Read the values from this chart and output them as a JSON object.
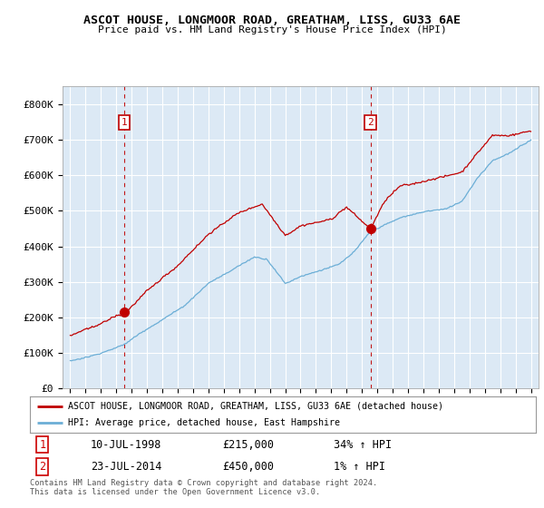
{
  "title": "ASCOT HOUSE, LONGMOOR ROAD, GREATHAM, LISS, GU33 6AE",
  "subtitle": "Price paid vs. HM Land Registry's House Price Index (HPI)",
  "legend_line1": "ASCOT HOUSE, LONGMOOR ROAD, GREATHAM, LISS, GU33 6AE (detached house)",
  "legend_line2": "HPI: Average price, detached house, East Hampshire",
  "table_row1": [
    "1",
    "10-JUL-1998",
    "£215,000",
    "34% ↑ HPI"
  ],
  "table_row2": [
    "2",
    "23-JUL-2014",
    "£450,000",
    "1% ↑ HPI"
  ],
  "footer": "Contains HM Land Registry data © Crown copyright and database right 2024.\nThis data is licensed under the Open Government Licence v3.0.",
  "hpi_color": "#6baed6",
  "price_color": "#c00000",
  "marker1_x": 1998.53,
  "marker2_x": 2014.55,
  "marker1_y": 215000,
  "marker2_y": 450000,
  "ylim": [
    0,
    850000
  ],
  "xlim_left": 1994.5,
  "xlim_right": 2025.5,
  "yticks": [
    0,
    100000,
    200000,
    300000,
    400000,
    500000,
    600000,
    700000,
    800000
  ],
  "ytick_labels": [
    "£0",
    "£100K",
    "£200K",
    "£300K",
    "£400K",
    "£500K",
    "£600K",
    "£700K",
    "£800K"
  ],
  "xticks": [
    1995,
    1996,
    1997,
    1998,
    1999,
    2000,
    2001,
    2002,
    2003,
    2004,
    2005,
    2006,
    2007,
    2008,
    2009,
    2010,
    2011,
    2012,
    2013,
    2014,
    2015,
    2016,
    2017,
    2018,
    2019,
    2020,
    2021,
    2022,
    2023,
    2024,
    2025
  ],
  "bg_color": "#dce9f5",
  "sale1_price": 215000,
  "sale2_price": 450000,
  "hpi_at_sale1": 160448,
  "hpi_at_sale2": 445500
}
